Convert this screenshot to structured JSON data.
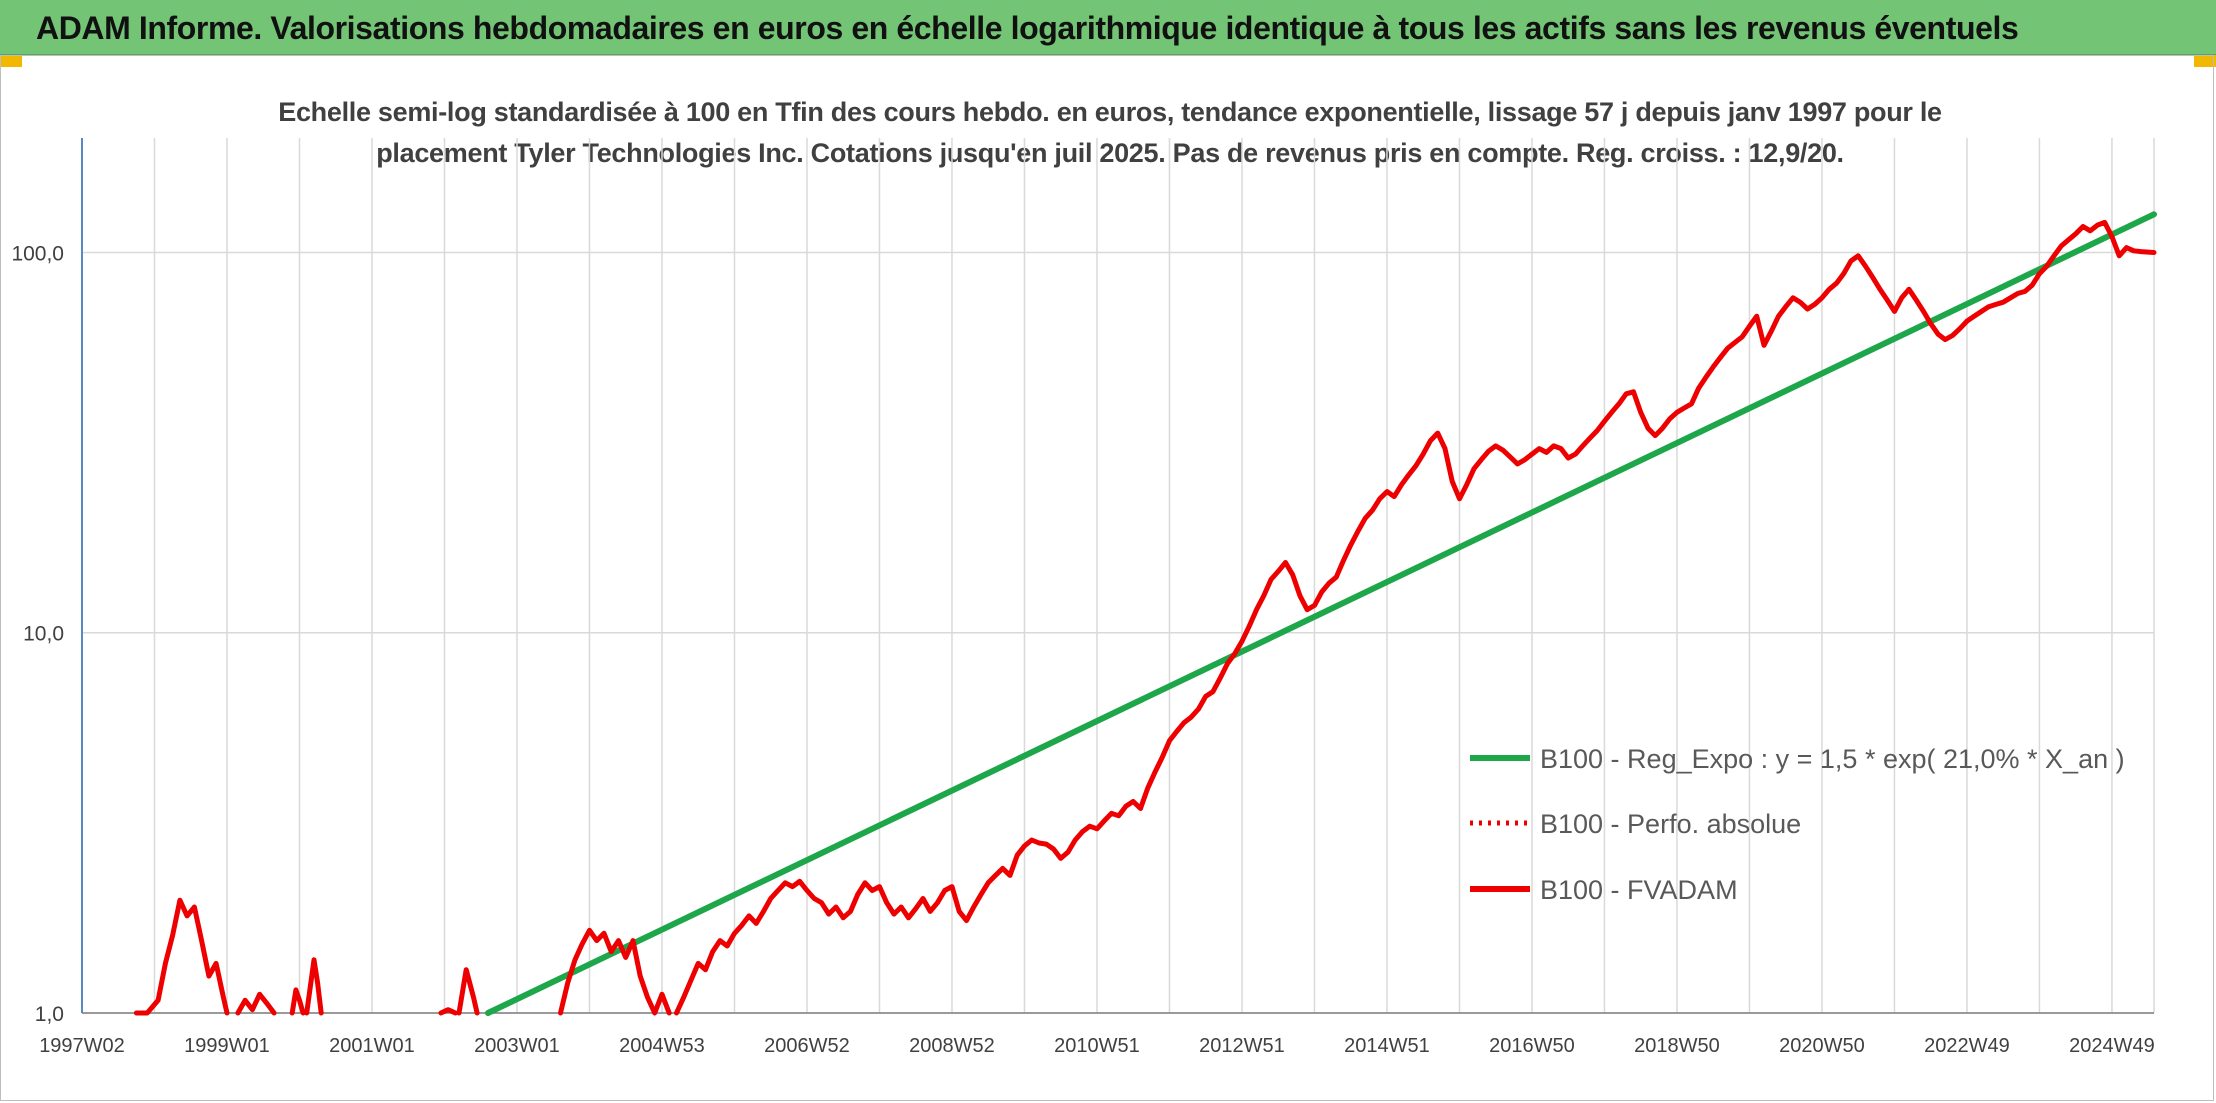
{
  "header": {
    "title": "ADAM Informe. Valorisations hebdomadaires en euros en échelle logarithmique identique à tous les actifs sans les revenus éventuels"
  },
  "colors": {
    "header_bg": "#74c476",
    "corner_accent": "#f2b800",
    "trend": "#1ea64b",
    "series": "#ee0000",
    "grid": "#d9d9d9"
  },
  "chart_data": {
    "type": "line",
    "title_line1": "Echelle semi-log standardisée à 100 en Tfin des cours hebdo. en euros, tendance exponentielle, lissage 57 j depuis janv 1997 pour le",
    "title_line2": "placement Tyler Technologies Inc. Cotations jusqu'en juil 2025. Pas de revenus pris en compte. Reg. croiss. : 12,9/20.",
    "y_scale": "log",
    "ylim": [
      1,
      200
    ],
    "y_ticks": [
      1,
      10,
      100
    ],
    "y_tick_labels": [
      "1,0",
      "10,0",
      "100,0"
    ],
    "xlim": [
      1997.0,
      2025.58
    ],
    "x_ticks": [
      1997.0,
      1999.0,
      2001.0,
      2003.0,
      2005.0,
      2007.0,
      2009.0,
      2011.0,
      2013.0,
      2015.0,
      2017.0,
      2019.0,
      2021.0,
      2023.0,
      2025.0
    ],
    "x_tick_labels": [
      "1997W02",
      "1999W01",
      "2001W01",
      "2003W01",
      "2004W53",
      "2006W52",
      "2008W52",
      "2010W51",
      "2012W51",
      "2014W51",
      "2016W50",
      "2018W50",
      "2020W50",
      "2022W49",
      "2024W49"
    ],
    "grid": true,
    "legend_position": "right-center",
    "series": [
      {
        "name": "B100 - Reg_Expo : y = 1,5 * exp( 21,0% *  X_an )",
        "style": "solid",
        "color": "#1ea64b",
        "points": [
          [
            2002.6,
            1.0
          ],
          [
            2025.58,
            126
          ]
        ]
      },
      {
        "name": "B100 - Perfo. absolue",
        "style": "dotted",
        "color": "#ee0000",
        "points": []
      },
      {
        "name": "B100 - FVADAM",
        "style": "solid",
        "color": "#ee0000",
        "segments": [
          [
            [
              1997.75,
              1.0
            ],
            [
              1997.9,
              1.0
            ],
            [
              1998.05,
              1.08
            ],
            [
              1998.15,
              1.35
            ],
            [
              1998.25,
              1.6
            ],
            [
              1998.35,
              1.98
            ],
            [
              1998.45,
              1.8
            ],
            [
              1998.55,
              1.9
            ],
            [
              1998.65,
              1.55
            ],
            [
              1998.75,
              1.25
            ],
            [
              1998.85,
              1.35
            ],
            [
              1998.95,
              1.1
            ],
            [
              1999.0,
              1.0
            ]
          ],
          [
            [
              1999.15,
              1.0
            ],
            [
              1999.25,
              1.08
            ],
            [
              1999.35,
              1.02
            ],
            [
              1999.45,
              1.12
            ],
            [
              1999.55,
              1.06
            ],
            [
              1999.65,
              1.0
            ]
          ],
          [
            [
              1999.9,
              1.0
            ],
            [
              1999.95,
              1.15
            ],
            [
              2000.0,
              1.08
            ],
            [
              2000.05,
              1.0
            ]
          ],
          [
            [
              2000.1,
              1.0
            ],
            [
              2000.2,
              1.38
            ],
            [
              2000.25,
              1.2
            ],
            [
              2000.3,
              1.0
            ]
          ],
          [
            [
              2001.95,
              1.0
            ],
            [
              2002.05,
              1.02
            ],
            [
              2002.15,
              1.0
            ]
          ],
          [
            [
              2002.2,
              1.0
            ],
            [
              2002.3,
              1.3
            ],
            [
              2002.4,
              1.1
            ],
            [
              2002.45,
              1.0
            ]
          ],
          [
            [
              2003.6,
              1.0
            ],
            [
              2003.7,
              1.2
            ],
            [
              2003.8,
              1.38
            ],
            [
              2003.9,
              1.52
            ],
            [
              2004.0,
              1.65
            ],
            [
              2004.1,
              1.55
            ],
            [
              2004.2,
              1.62
            ],
            [
              2004.3,
              1.45
            ],
            [
              2004.4,
              1.55
            ],
            [
              2004.5,
              1.4
            ],
            [
              2004.6,
              1.55
            ],
            [
              2004.7,
              1.25
            ],
            [
              2004.8,
              1.1
            ],
            [
              2004.9,
              1.0
            ],
            [
              2005.0,
              1.12
            ],
            [
              2005.1,
              1.0
            ]
          ],
          [
            [
              2005.2,
              1.0
            ],
            [
              2005.3,
              1.1
            ],
            [
              2005.4,
              1.22
            ],
            [
              2005.5,
              1.35
            ],
            [
              2005.6,
              1.3
            ],
            [
              2005.7,
              1.45
            ],
            [
              2005.8,
              1.55
            ],
            [
              2005.9,
              1.5
            ],
            [
              2006.0,
              1.62
            ],
            [
              2006.1,
              1.7
            ],
            [
              2006.2,
              1.8
            ],
            [
              2006.3,
              1.72
            ],
            [
              2006.4,
              1.85
            ],
            [
              2006.5,
              2.0
            ],
            [
              2006.6,
              2.1
            ],
            [
              2006.7,
              2.2
            ],
            [
              2006.8,
              2.15
            ],
            [
              2006.9,
              2.22
            ],
            [
              2007.0,
              2.1
            ],
            [
              2007.1,
              2.0
            ],
            [
              2007.2,
              1.95
            ],
            [
              2007.3,
              1.82
            ],
            [
              2007.4,
              1.9
            ],
            [
              2007.5,
              1.78
            ],
            [
              2007.6,
              1.85
            ],
            [
              2007.7,
              2.05
            ],
            [
              2007.8,
              2.2
            ],
            [
              2007.9,
              2.1
            ],
            [
              2008.0,
              2.15
            ],
            [
              2008.1,
              1.95
            ],
            [
              2008.2,
              1.82
            ],
            [
              2008.3,
              1.9
            ],
            [
              2008.4,
              1.78
            ],
            [
              2008.5,
              1.88
            ],
            [
              2008.6,
              2.0
            ],
            [
              2008.7,
              1.85
            ],
            [
              2008.8,
              1.95
            ],
            [
              2008.9,
              2.1
            ],
            [
              2009.0,
              2.15
            ],
            [
              2009.1,
              1.85
            ],
            [
              2009.2,
              1.75
            ],
            [
              2009.3,
              1.9
            ],
            [
              2009.4,
              2.05
            ],
            [
              2009.5,
              2.2
            ],
            [
              2009.6,
              2.3
            ],
            [
              2009.7,
              2.4
            ],
            [
              2009.8,
              2.3
            ],
            [
              2009.9,
              2.6
            ],
            [
              2010.0,
              2.75
            ],
            [
              2010.1,
              2.85
            ],
            [
              2010.2,
              2.8
            ],
            [
              2010.3,
              2.78
            ],
            [
              2010.4,
              2.7
            ],
            [
              2010.5,
              2.55
            ],
            [
              2010.6,
              2.65
            ],
            [
              2010.7,
              2.85
            ],
            [
              2010.8,
              3.0
            ],
            [
              2010.9,
              3.1
            ],
            [
              2011.0,
              3.05
            ],
            [
              2011.1,
              3.2
            ],
            [
              2011.2,
              3.35
            ],
            [
              2011.3,
              3.3
            ],
            [
              2011.4,
              3.5
            ],
            [
              2011.5,
              3.6
            ],
            [
              2011.6,
              3.45
            ],
            [
              2011.7,
              3.9
            ],
            [
              2011.8,
              4.3
            ],
            [
              2011.9,
              4.7
            ],
            [
              2012.0,
              5.2
            ],
            [
              2012.1,
              5.5
            ],
            [
              2012.2,
              5.8
            ],
            [
              2012.3,
              6.0
            ],
            [
              2012.4,
              6.3
            ],
            [
              2012.5,
              6.8
            ],
            [
              2012.6,
              7.0
            ],
            [
              2012.7,
              7.6
            ],
            [
              2012.8,
              8.3
            ],
            [
              2012.9,
              8.8
            ],
            [
              2013.0,
              9.5
            ],
            [
              2013.1,
              10.4
            ],
            [
              2013.2,
              11.5
            ],
            [
              2013.3,
              12.5
            ],
            [
              2013.4,
              13.8
            ],
            [
              2013.5,
              14.5
            ],
            [
              2013.6,
              15.3
            ],
            [
              2013.7,
              14.2
            ],
            [
              2013.8,
              12.5
            ],
            [
              2013.9,
              11.5
            ],
            [
              2014.0,
              11.8
            ],
            [
              2014.1,
              12.8
            ],
            [
              2014.2,
              13.5
            ],
            [
              2014.3,
              14.0
            ],
            [
              2014.4,
              15.5
            ],
            [
              2014.5,
              17.0
            ],
            [
              2014.6,
              18.5
            ],
            [
              2014.7,
              20.0
            ],
            [
              2014.8,
              21.0
            ],
            [
              2014.9,
              22.5
            ],
            [
              2015.0,
              23.5
            ],
            [
              2015.1,
              22.8
            ],
            [
              2015.2,
              24.5
            ],
            [
              2015.3,
              26.0
            ],
            [
              2015.4,
              27.5
            ],
            [
              2015.5,
              29.5
            ],
            [
              2015.6,
              32.0
            ],
            [
              2015.7,
              33.5
            ],
            [
              2015.8,
              30.5
            ],
            [
              2015.9,
              25.0
            ],
            [
              2016.0,
              22.5
            ],
            [
              2016.1,
              24.5
            ],
            [
              2016.2,
              27.0
            ],
            [
              2016.3,
              28.5
            ],
            [
              2016.4,
              30.0
            ],
            [
              2016.5,
              31.0
            ],
            [
              2016.6,
              30.2
            ],
            [
              2016.7,
              29.0
            ],
            [
              2016.8,
              27.8
            ],
            [
              2016.9,
              28.5
            ],
            [
              2017.0,
              29.5
            ],
            [
              2017.1,
              30.5
            ],
            [
              2017.2,
              29.8
            ],
            [
              2017.3,
              31.0
            ],
            [
              2017.4,
              30.5
            ],
            [
              2017.5,
              28.8
            ],
            [
              2017.6,
              29.5
            ],
            [
              2017.7,
              31.0
            ],
            [
              2017.8,
              32.5
            ],
            [
              2017.9,
              34.0
            ],
            [
              2018.0,
              36.0
            ],
            [
              2018.1,
              38.0
            ],
            [
              2018.2,
              40.0
            ],
            [
              2018.3,
              42.5
            ],
            [
              2018.4,
              43.0
            ],
            [
              2018.5,
              38.0
            ],
            [
              2018.6,
              34.5
            ],
            [
              2018.7,
              33.0
            ],
            [
              2018.8,
              34.5
            ],
            [
              2018.9,
              36.5
            ],
            [
              2019.0,
              38.0
            ],
            [
              2019.1,
              39.0
            ],
            [
              2019.2,
              40.0
            ],
            [
              2019.3,
              44.0
            ],
            [
              2019.4,
              47.0
            ],
            [
              2019.5,
              50.0
            ],
            [
              2019.6,
              53.0
            ],
            [
              2019.7,
              56.0
            ],
            [
              2019.8,
              58.0
            ],
            [
              2019.9,
              60.0
            ],
            [
              2020.0,
              64.0
            ],
            [
              2020.1,
              68.0
            ],
            [
              2020.2,
              57.0
            ],
            [
              2020.3,
              62.0
            ],
            [
              2020.4,
              68.0
            ],
            [
              2020.5,
              72.0
            ],
            [
              2020.6,
              76.0
            ],
            [
              2020.7,
              74.0
            ],
            [
              2020.8,
              71.0
            ],
            [
              2020.9,
              73.0
            ],
            [
              2021.0,
              76.0
            ],
            [
              2021.1,
              80.0
            ],
            [
              2021.2,
              83.0
            ],
            [
              2021.3,
              88.0
            ],
            [
              2021.4,
              95.0
            ],
            [
              2021.5,
              98.0
            ],
            [
              2021.6,
              92.0
            ],
            [
              2021.7,
              86.0
            ],
            [
              2021.8,
              80.0
            ],
            [
              2021.9,
              75.0
            ],
            [
              2022.0,
              70.0
            ],
            [
              2022.1,
              76.0
            ],
            [
              2022.2,
              80.0
            ],
            [
              2022.3,
              75.0
            ],
            [
              2022.4,
              70.0
            ],
            [
              2022.5,
              65.0
            ],
            [
              2022.6,
              61.0
            ],
            [
              2022.7,
              59.0
            ],
            [
              2022.8,
              60.5
            ],
            [
              2022.9,
              63.0
            ],
            [
              2023.0,
              66.0
            ],
            [
              2023.1,
              68.0
            ],
            [
              2023.2,
              70.0
            ],
            [
              2023.3,
              72.0
            ],
            [
              2023.4,
              73.0
            ],
            [
              2023.5,
              74.0
            ],
            [
              2023.6,
              76.0
            ],
            [
              2023.7,
              78.0
            ],
            [
              2023.8,
              79.0
            ],
            [
              2023.9,
              82.0
            ],
            [
              2024.0,
              88.0
            ],
            [
              2024.1,
              92.0
            ],
            [
              2024.2,
              98.0
            ],
            [
              2024.3,
              104.0
            ],
            [
              2024.4,
              108.0
            ],
            [
              2024.5,
              112.0
            ],
            [
              2024.6,
              117.0
            ],
            [
              2024.7,
              114.0
            ],
            [
              2024.8,
              118.0
            ],
            [
              2024.9,
              120.0
            ],
            [
              2025.0,
              110.0
            ],
            [
              2025.1,
              98.0
            ],
            [
              2025.2,
              103.0
            ],
            [
              2025.3,
              101.0
            ],
            [
              2025.4,
              100.5
            ],
            [
              2025.58,
              100.0
            ]
          ]
        ]
      }
    ]
  }
}
